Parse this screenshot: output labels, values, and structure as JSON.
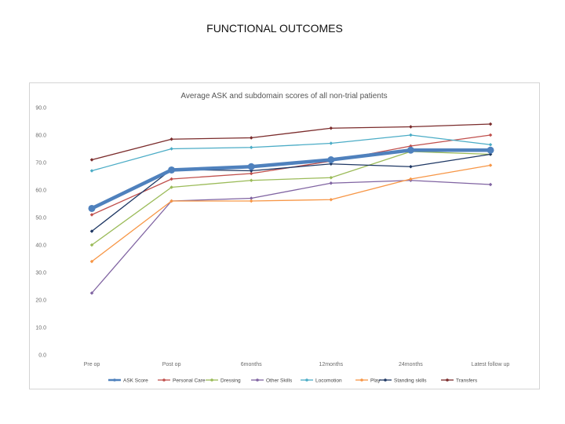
{
  "slide": {
    "title": "FUNCTIONAL OUTCOMES"
  },
  "chart_data": {
    "type": "line",
    "title": "Average ASK and subdomain scores of all non-trial patients",
    "categories": [
      "Pre op",
      "Post op",
      "6months",
      "12months",
      "24months",
      "Latest follow up"
    ],
    "ylim": [
      0,
      90
    ],
    "yticks": [
      "0.0",
      "10.0",
      "20.0",
      "30.0",
      "40.0",
      "50.0",
      "60.0",
      "70.0",
      "80.0",
      "90.0"
    ],
    "grid": false,
    "legend": "bottom",
    "series": [
      {
        "name": "ASK Score",
        "color": "#4f81bd",
        "emphasis": true,
        "values": [
          53.3,
          67.3,
          68.5,
          71.0,
          74.5,
          74.5
        ]
      },
      {
        "name": "Personal Care",
        "color": "#c0504d",
        "values": [
          51.0,
          64.0,
          66.0,
          70.5,
          76.0,
          80.0
        ]
      },
      {
        "name": "Dressing",
        "color": "#9bbb59",
        "values": [
          40.0,
          61.0,
          63.5,
          64.5,
          74.0,
          73.0
        ]
      },
      {
        "name": "Other Skills",
        "color": "#8064a2",
        "values": [
          22.5,
          56.0,
          57.0,
          62.5,
          63.5,
          62.0
        ]
      },
      {
        "name": "Locomotion",
        "color": "#4bacc6",
        "values": [
          67.0,
          75.0,
          75.5,
          77.0,
          80.0,
          76.5
        ]
      },
      {
        "name": "Play",
        "color": "#f79646",
        "values": [
          34.0,
          56.0,
          56.0,
          56.5,
          64.0,
          69.0
        ]
      },
      {
        "name": "Standing skills",
        "color": "#1f3864",
        "values": [
          45.0,
          67.5,
          67.0,
          69.5,
          68.5,
          73.0
        ]
      },
      {
        "name": "Transfers",
        "color": "#7b2c2c",
        "values": [
          71.0,
          78.5,
          79.0,
          82.5,
          83.0,
          84.0
        ]
      }
    ]
  }
}
